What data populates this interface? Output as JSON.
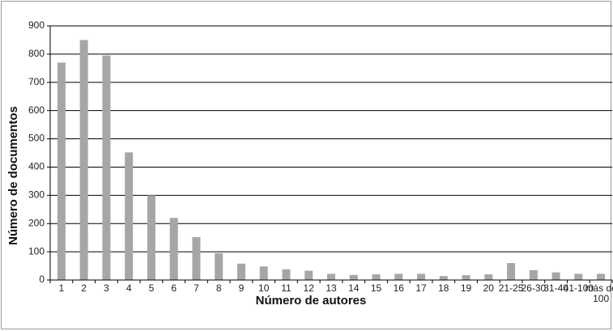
{
  "chart_data": {
    "type": "bar",
    "title": "",
    "xlabel": "Número de autores",
    "ylabel": "Número de documentos",
    "ylim": [
      0,
      900
    ],
    "yticks": [
      0,
      100,
      200,
      300,
      400,
      500,
      600,
      700,
      800,
      900
    ],
    "grid": true,
    "legend": "none",
    "bar_color": "#a6a6a6",
    "categories": [
      "1",
      "2",
      "3",
      "4",
      "5",
      "6",
      "7",
      "8",
      "9",
      "10",
      "11",
      "12",
      "13",
      "14",
      "15",
      "16",
      "17",
      "18",
      "19",
      "20",
      "21-25",
      "26-30",
      "31-40",
      "41-100",
      "más de 100"
    ],
    "values": [
      770,
      850,
      795,
      452,
      300,
      220,
      152,
      95,
      58,
      48,
      38,
      33,
      22,
      18,
      20,
      22,
      22,
      14,
      17,
      20,
      60,
      35,
      27,
      22,
      22
    ]
  }
}
